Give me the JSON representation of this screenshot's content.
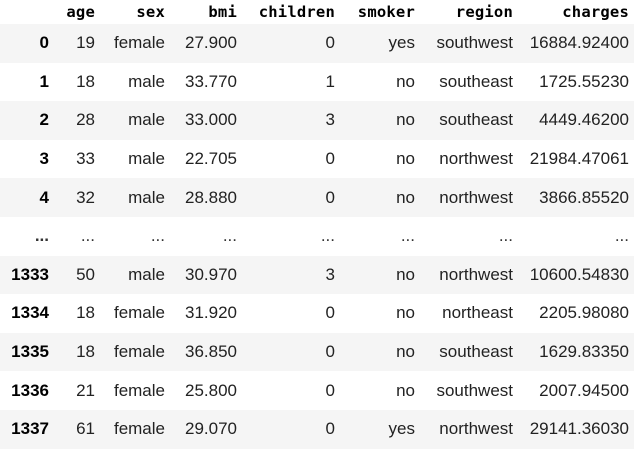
{
  "table": {
    "columns": [
      "",
      "age",
      "sex",
      "bmi",
      "children",
      "smoker",
      "region",
      "charges"
    ],
    "rows": [
      {
        "index": "0",
        "cells": [
          "19",
          "female",
          "27.900",
          "0",
          "yes",
          "southwest",
          "16884.92400"
        ]
      },
      {
        "index": "1",
        "cells": [
          "18",
          "male",
          "33.770",
          "1",
          "no",
          "southeast",
          "1725.55230"
        ]
      },
      {
        "index": "2",
        "cells": [
          "28",
          "male",
          "33.000",
          "3",
          "no",
          "southeast",
          "4449.46200"
        ]
      },
      {
        "index": "3",
        "cells": [
          "33",
          "male",
          "22.705",
          "0",
          "no",
          "northwest",
          "21984.47061"
        ]
      },
      {
        "index": "4",
        "cells": [
          "32",
          "male",
          "28.880",
          "0",
          "no",
          "northwest",
          "3866.85520"
        ]
      },
      {
        "index": "...",
        "cells": [
          "...",
          "...",
          "...",
          "...",
          "...",
          "...",
          "..."
        ]
      },
      {
        "index": "1333",
        "cells": [
          "50",
          "male",
          "30.970",
          "3",
          "no",
          "northwest",
          "10600.54830"
        ]
      },
      {
        "index": "1334",
        "cells": [
          "18",
          "female",
          "31.920",
          "0",
          "no",
          "northeast",
          "2205.98080"
        ]
      },
      {
        "index": "1335",
        "cells": [
          "18",
          "female",
          "36.850",
          "0",
          "no",
          "southeast",
          "1629.83350"
        ]
      },
      {
        "index": "1336",
        "cells": [
          "21",
          "female",
          "25.800",
          "0",
          "no",
          "southwest",
          "2007.94500"
        ]
      },
      {
        "index": "1337",
        "cells": [
          "61",
          "female",
          "29.070",
          "0",
          "yes",
          "northwest",
          "29141.36030"
        ]
      }
    ]
  }
}
